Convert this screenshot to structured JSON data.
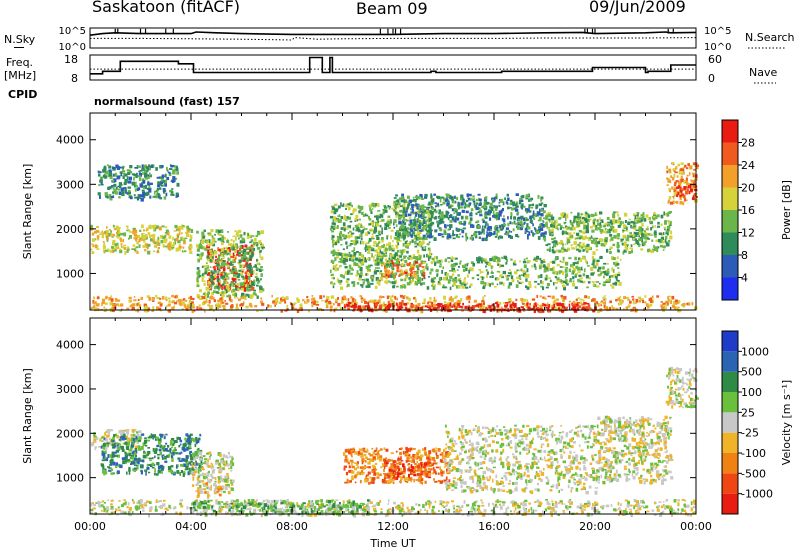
{
  "header": {
    "station": "Saskatoon (fitACF)",
    "beam": "Beam 09",
    "date": "09/Jun/2009"
  },
  "side_labels": {
    "nsky": "N.Sky",
    "freq": "Freq.",
    "freq_unit": "[MHz]",
    "cpid": "CPID",
    "nsearch": "N.Search",
    "nave": "Nave"
  },
  "cpid_text": "normalsound (fast) 157",
  "chart_data": [
    {
      "type": "line",
      "name": "noise-panel",
      "left_axis_ticks": [
        "10^5",
        "10^0"
      ],
      "right_axis_ticks": [
        "10^5",
        "10^0"
      ],
      "series": [
        {
          "name": "N.Sky",
          "style": "solid",
          "x": [
            0,
            0.5,
            1,
            2,
            4,
            4.2,
            5,
            6,
            8,
            10,
            12,
            14,
            16,
            18,
            19.5,
            20,
            22,
            22.8,
            23,
            24
          ],
          "y": [
            3.2,
            3.6,
            3.8,
            3.6,
            3.6,
            4.0,
            3.8,
            3.6,
            3.4,
            3.4,
            3.4,
            3.6,
            3.6,
            3.8,
            3.9,
            3.6,
            3.8,
            4.0,
            3.8,
            3.9
          ]
        },
        {
          "name": "N.Search",
          "style": "dotted",
          "x": [
            0,
            2,
            4,
            6,
            7,
            8,
            8.1,
            9,
            10,
            12,
            14,
            16,
            18,
            20,
            22,
            24
          ],
          "y": [
            2.4,
            2.4,
            2.3,
            2.2,
            2.1,
            2.0,
            2.6,
            2.2,
            2.3,
            2.4,
            2.4,
            2.4,
            2.5,
            2.5,
            2.5,
            2.6
          ]
        }
      ]
    },
    {
      "type": "line",
      "name": "freq-panel",
      "left_axis_ticks": [
        "18",
        "8"
      ],
      "right_axis_ticks": [
        "60",
        "0"
      ],
      "left_range": [
        8,
        18
      ],
      "right_range": [
        0,
        60
      ],
      "series": [
        {
          "name": "Freq.",
          "style": "step",
          "x": [
            0,
            0.5,
            1,
            1.2,
            3.5,
            4.1,
            8.6,
            8.7,
            9.0,
            9.2,
            9.5,
            9.6,
            10,
            13.5,
            13.7,
            16.2,
            16.3,
            19.8,
            19.9,
            22,
            22.1,
            22.9,
            23.0,
            24
          ],
          "y": [
            10.5,
            11.5,
            11.5,
            15.5,
            14.5,
            11,
            11,
            17,
            17,
            11,
            17,
            11,
            11,
            11.5,
            11,
            11,
            11.5,
            11.5,
            13,
            11,
            11.5,
            11.5,
            14,
            14
          ]
        },
        {
          "name": "Nave",
          "style": "dotted",
          "x": [
            0,
            24
          ],
          "y": [
            26,
            26
          ]
        }
      ]
    },
    {
      "type": "heatmap",
      "name": "power-panel",
      "xlabel": "",
      "ylabel": "Slant Range [km]",
      "xlim": [
        0,
        24
      ],
      "ylim": [
        180,
        4600
      ],
      "y_ticks": [
        1000,
        2000,
        3000,
        4000
      ],
      "colorbar": {
        "label": "Power [dB]",
        "ticks": [
          "4",
          "8",
          "12",
          "16",
          "20",
          "24",
          "28"
        ],
        "colors": [
          "#1e2ef0",
          "#2c5cb8",
          "#2f8b5a",
          "#6ab64a",
          "#d6d23a",
          "#f2a02a",
          "#f05a1e",
          "#e81c12"
        ]
      },
      "regions": [
        {
          "x0": 0,
          "x1": 4,
          "y0": 1500,
          "y1": 2100,
          "level": 4
        },
        {
          "x0": 0.3,
          "x1": 3.5,
          "y0": 2700,
          "y1": 3450,
          "level": 2
        },
        {
          "x0": 4.6,
          "x1": 6.4,
          "y0": 650,
          "y1": 1650,
          "level": 7
        },
        {
          "x0": 4.2,
          "x1": 6.8,
          "y0": 500,
          "y1": 2000,
          "level": 3
        },
        {
          "x0": 9.5,
          "x1": 13.5,
          "y0": 1300,
          "y1": 2600,
          "level": 3
        },
        {
          "x0": 11.5,
          "x1": 13.2,
          "y0": 950,
          "y1": 1300,
          "level": 6
        },
        {
          "x0": 9.5,
          "x1": 21,
          "y0": 700,
          "y1": 1400,
          "level": 3
        },
        {
          "x0": 12,
          "x1": 18,
          "y0": 1800,
          "y1": 2800,
          "level": 2
        },
        {
          "x0": 18,
          "x1": 23,
          "y0": 1500,
          "y1": 2400,
          "level": 3
        },
        {
          "x0": 22.8,
          "x1": 24,
          "y0": 2600,
          "y1": 3500,
          "level": 5
        },
        {
          "x0": 23.2,
          "x1": 24,
          "y0": 2700,
          "y1": 3000,
          "level": 7
        },
        {
          "x0": 0,
          "x1": 24,
          "y0": 180,
          "y1": 520,
          "level": 5
        },
        {
          "x0": 10,
          "x1": 20,
          "y0": 180,
          "y1": 360,
          "level": 7
        }
      ]
    },
    {
      "type": "heatmap",
      "name": "velocity-panel",
      "xlabel": "Time UT",
      "ylabel": "Slant Range [km]",
      "xlim": [
        0,
        24
      ],
      "ylim": [
        180,
        4600
      ],
      "y_ticks": [
        1000,
        2000,
        3000,
        4000
      ],
      "x_ticks": [
        "00:00",
        "04:00",
        "08:00",
        "12:00",
        "16:00",
        "20:00",
        "00:00"
      ],
      "colorbar": {
        "label": "Velocity [m s⁻¹]",
        "ticks": [
          "1000",
          "500",
          "100",
          "25",
          "-25",
          "-100",
          "-500",
          "-1000"
        ],
        "colors": [
          "#1e3cc8",
          "#2c64b4",
          "#2f8a46",
          "#6abf3c",
          "#c8c8c8",
          "#f0b428",
          "#f08214",
          "#f04614",
          "#e81c12"
        ]
      },
      "regions": [
        {
          "x0": 0,
          "x1": 2,
          "y0": 1700,
          "y1": 2100,
          "level": 4
        },
        {
          "x0": 0.4,
          "x1": 4.4,
          "y0": 1100,
          "y1": 2000,
          "level": 2
        },
        {
          "x0": 4,
          "x1": 5.6,
          "y0": 700,
          "y1": 1600,
          "level": 4
        },
        {
          "x0": 4.2,
          "x1": 5.2,
          "y0": 600,
          "y1": 900,
          "level": 5
        },
        {
          "x0": 10,
          "x1": 14.2,
          "y0": 900,
          "y1": 1700,
          "level": 6
        },
        {
          "x0": 11.6,
          "x1": 13.4,
          "y0": 1000,
          "y1": 1400,
          "level": 7
        },
        {
          "x0": 14,
          "x1": 20,
          "y0": 700,
          "y1": 2200,
          "level": 4
        },
        {
          "x0": 20,
          "x1": 23,
          "y0": 900,
          "y1": 2400,
          "level": 4
        },
        {
          "x0": 22.8,
          "x1": 24,
          "y0": 2600,
          "y1": 3500,
          "level": 4
        },
        {
          "x0": 0,
          "x1": 24,
          "y0": 180,
          "y1": 520,
          "level": 4
        },
        {
          "x0": 4,
          "x1": 11,
          "y0": 200,
          "y1": 520,
          "level": 3
        }
      ]
    }
  ]
}
